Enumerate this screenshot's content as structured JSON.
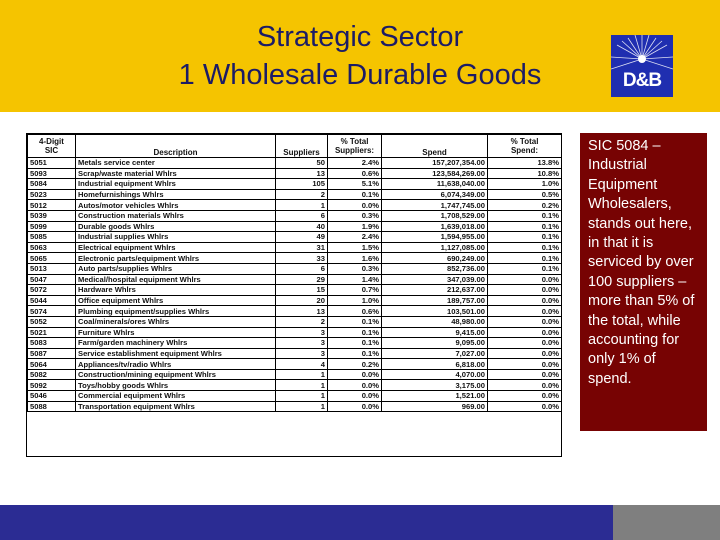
{
  "title": {
    "line1": "Strategic Sector",
    "line2": "1 Wholesale Durable Goods"
  },
  "logo": {
    "text": "D&B"
  },
  "table": {
    "headers": {
      "sic_l1": "4-Digit",
      "sic_l2": "SIC",
      "description": "Description",
      "suppliers": "Suppliers",
      "pct_sup_l1": "% Total",
      "pct_sup_l2": "Suppliers:",
      "spend": "Spend",
      "pct_spend_l1": "% Total",
      "pct_spend_l2": "Spend:"
    },
    "rows": [
      {
        "sic": "5051",
        "description": "Metals service center",
        "suppliers": "50",
        "pct_suppliers": "2.4%",
        "spend": "157,207,354.00",
        "pct_spend": "13.8%"
      },
      {
        "sic": "5093",
        "description": "Scrap/waste material Whlrs",
        "suppliers": "13",
        "pct_suppliers": "0.6%",
        "spend": "123,584,269.00",
        "pct_spend": "10.8%"
      },
      {
        "sic": "5084",
        "description": "Industrial equipment Whlrs",
        "suppliers": "105",
        "pct_suppliers": "5.1%",
        "spend": "11,638,040.00",
        "pct_spend": "1.0%"
      },
      {
        "sic": "5023",
        "description": "Homefurnishings Whlrs",
        "suppliers": "2",
        "pct_suppliers": "0.1%",
        "spend": "6,074,349.00",
        "pct_spend": "0.5%"
      },
      {
        "sic": "5012",
        "description": "Autos/motor vehicles Whlrs",
        "suppliers": "1",
        "pct_suppliers": "0.0%",
        "spend": "1,747,745.00",
        "pct_spend": "0.2%"
      },
      {
        "sic": "5039",
        "description": "Construction materials Whlrs",
        "suppliers": "6",
        "pct_suppliers": "0.3%",
        "spend": "1,708,529.00",
        "pct_spend": "0.1%"
      },
      {
        "sic": "5099",
        "description": "Durable goods Whlrs",
        "suppliers": "40",
        "pct_suppliers": "1.9%",
        "spend": "1,639,018.00",
        "pct_spend": "0.1%"
      },
      {
        "sic": "5085",
        "description": "Industrial supplies Whlrs",
        "suppliers": "49",
        "pct_suppliers": "2.4%",
        "spend": "1,594,955.00",
        "pct_spend": "0.1%"
      },
      {
        "sic": "5063",
        "description": "Electrical equipment Whlrs",
        "suppliers": "31",
        "pct_suppliers": "1.5%",
        "spend": "1,127,085.00",
        "pct_spend": "0.1%"
      },
      {
        "sic": "5065",
        "description": "Electronic parts/equipment Whlrs",
        "suppliers": "33",
        "pct_suppliers": "1.6%",
        "spend": "690,249.00",
        "pct_spend": "0.1%"
      },
      {
        "sic": "5013",
        "description": "Auto parts/supplies Whlrs",
        "suppliers": "6",
        "pct_suppliers": "0.3%",
        "spend": "852,736.00",
        "pct_spend": "0.1%"
      },
      {
        "sic": "5047",
        "description": "Medical/hospital equipment Whlrs",
        "suppliers": "29",
        "pct_suppliers": "1.4%",
        "spend": "347,039.00",
        "pct_spend": "0.0%"
      },
      {
        "sic": "5072",
        "description": "Hardware Whlrs",
        "suppliers": "15",
        "pct_suppliers": "0.7%",
        "spend": "212,637.00",
        "pct_spend": "0.0%"
      },
      {
        "sic": "5044",
        "description": "Office equipment Whlrs",
        "suppliers": "20",
        "pct_suppliers": "1.0%",
        "spend": "189,757.00",
        "pct_spend": "0.0%"
      },
      {
        "sic": "5074",
        "description": "Plumbing equipment/supplies Whlrs",
        "suppliers": "13",
        "pct_suppliers": "0.6%",
        "spend": "103,501.00",
        "pct_spend": "0.0%"
      },
      {
        "sic": "5052",
        "description": "Coal/minerals/ores Whlrs",
        "suppliers": "2",
        "pct_suppliers": "0.1%",
        "spend": "48,980.00",
        "pct_spend": "0.0%"
      },
      {
        "sic": "5021",
        "description": "Furniture Whlrs",
        "suppliers": "3",
        "pct_suppliers": "0.1%",
        "spend": "9,415.00",
        "pct_spend": "0.0%"
      },
      {
        "sic": "5083",
        "description": "Farm/garden machinery Whlrs",
        "suppliers": "3",
        "pct_suppliers": "0.1%",
        "spend": "9,095.00",
        "pct_spend": "0.0%"
      },
      {
        "sic": "5087",
        "description": "Service establishment equipment Whlrs",
        "suppliers": "3",
        "pct_suppliers": "0.1%",
        "spend": "7,027.00",
        "pct_spend": "0.0%"
      },
      {
        "sic": "5064",
        "description": "Appliances/tv/radio Whlrs",
        "suppliers": "4",
        "pct_suppliers": "0.2%",
        "spend": "6,818.00",
        "pct_spend": "0.0%"
      },
      {
        "sic": "5082",
        "description": "Construction/mining equipment Whlrs",
        "suppliers": "1",
        "pct_suppliers": "0.0%",
        "spend": "4,070.00",
        "pct_spend": "0.0%"
      },
      {
        "sic": "5092",
        "description": "Toys/hobby goods Whlrs",
        "suppliers": "1",
        "pct_suppliers": "0.0%",
        "spend": "3,175.00",
        "pct_spend": "0.0%"
      },
      {
        "sic": "5046",
        "description": "Commercial equipment Whlrs",
        "suppliers": "1",
        "pct_suppliers": "0.0%",
        "spend": "1,521.00",
        "pct_spend": "0.0%"
      },
      {
        "sic": "5088",
        "description": "Transportation equipment Whlrs",
        "suppliers": "1",
        "pct_suppliers": "0.0%",
        "spend": "969.00",
        "pct_spend": "0.0%"
      }
    ]
  },
  "callout": {
    "text": "SIC 5084 – Industrial Equipment Wholesalers, stands out here, in that it is serviced by over 100 suppliers – more than 5% of the total, while accounting for only 1% of spend."
  },
  "colors": {
    "header_bg": "#f5c400",
    "title_text": "#1c1c66",
    "callout_bg": "#770303",
    "footer_blue": "#2b2c93",
    "footer_gray": "#7f7f7f",
    "logo_bg": "#1f2eb0"
  }
}
